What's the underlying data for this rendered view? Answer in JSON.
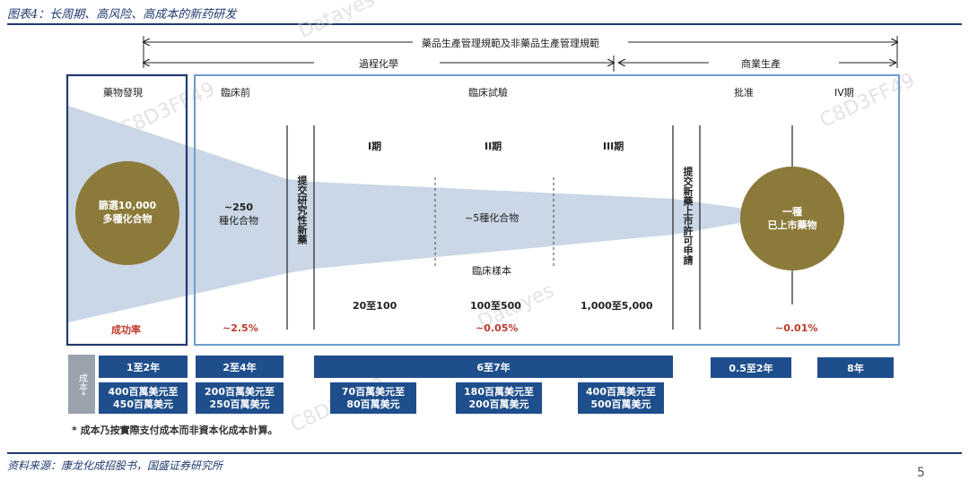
{
  "title": "图表4：长周期、高风险、高成本的新药研发",
  "top_span": "藥品生產管理規範及非藥品生產管理規範",
  "process_span": "過程化學",
  "commercial_span": "商業生產",
  "stages": {
    "discovery": "藥物發現",
    "preclinical": "臨床前",
    "clinical": "臨床試驗",
    "approval": "批准",
    "phase4": "IV期"
  },
  "phases": [
    "I期",
    "II期",
    "III期"
  ],
  "screening": [
    "篩選10,000",
    "多種化合物"
  ],
  "compounds_250": [
    "~250",
    "種化合物"
  ],
  "compounds_5": "~5種化合物",
  "samples": "臨床樣本",
  "sample_sizes": [
    "20至100",
    "100至500",
    "1,000至5,000"
  ],
  "ind_submit": "提交研究性新藥",
  "nda_submit": "提交新藥上市許可申請",
  "one_drug": [
    "一種",
    "已上市藥物"
  ],
  "success_label": "成功率",
  "rates": [
    "~2.5%",
    "~0.05%",
    "~0.01%"
  ],
  "cost_label": "成本*",
  "durations": [
    "1至2年",
    "2至4年",
    "6至7年",
    "0.5至2年",
    "8年"
  ],
  "costs": [
    [
      "400百萬美元至",
      "450百萬美元"
    ],
    [
      "200百萬美元至",
      "250百萬美元"
    ],
    [
      "70百萬美元至",
      "80百萬美元"
    ],
    [
      "180百萬美元至",
      "200百萬美元"
    ],
    [
      "400百萬美元至",
      "500百萬美元"
    ]
  ],
  "footnote": "* 成本乃按實際支付成本而非資本化成本計算。",
  "source": "资料来源：康龙化成招股书，国盛证券研究所",
  "page_number": "5",
  "watermarks": [
    "C8D3FF49",
    "Datayes"
  ],
  "colors": {
    "navy": "#1f3a6e",
    "blue": "#1f4e8c",
    "olive": "#8b7a3a",
    "red": "#c0392b",
    "funnel": "#c9d7e6"
  }
}
